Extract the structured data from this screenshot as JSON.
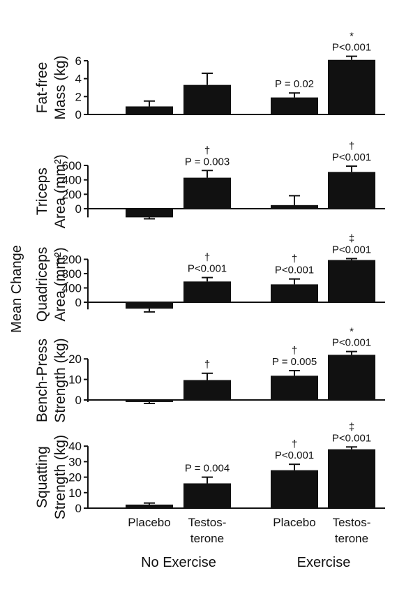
{
  "chart_data": {
    "type": "bar",
    "shared_ylabel": "Mean Change",
    "categories": [
      "Placebo",
      "Testos-\nterone",
      "Placebo",
      "Testos-\nterone"
    ],
    "category_lines": [
      [
        "Placebo"
      ],
      [
        "Testos-",
        "terone"
      ],
      [
        "Placebo"
      ],
      [
        "Testos-",
        "terone"
      ]
    ],
    "groups": [
      {
        "label": "No Exercise",
        "categories": [
          0,
          1
        ]
      },
      {
        "label": "Exercise",
        "categories": [
          2,
          3
        ]
      }
    ],
    "panels": [
      {
        "ylabel": [
          "Fat-free",
          "Mass (kg)"
        ],
        "ylim": [
          0,
          6
        ],
        "yticks": [
          0,
          2,
          4,
          6
        ],
        "values": [
          0.9,
          3.3,
          1.9,
          6.1
        ],
        "errors": [
          0.6,
          1.3,
          0.5,
          0.4
        ],
        "symbols": [
          "",
          "",
          "",
          "*"
        ],
        "annotations": [
          "",
          "",
          "P = 0.02",
          "P<0.001"
        ]
      },
      {
        "ylabel": [
          "Triceps",
          "Area (mm²)"
        ],
        "ylim": [
          -120,
          600
        ],
        "yticks": [
          0,
          200,
          400,
          600
        ],
        "values": [
          -120,
          430,
          50,
          510
        ],
        "errors": [
          20,
          100,
          130,
          80
        ],
        "symbols": [
          "",
          "†",
          "",
          "†"
        ],
        "annotations": [
          "",
          "P = 0.003",
          "",
          "P<0.001"
        ]
      },
      {
        "ylabel": [
          "Quadriceps",
          "Area (mm²)"
        ],
        "ylim": [
          -200,
          1200
        ],
        "yticks": [
          0,
          400,
          800,
          1200
        ],
        "values": [
          -180,
          580,
          500,
          1180
        ],
        "errors": [
          90,
          110,
          150,
          40
        ],
        "symbols": [
          "",
          "†",
          "†",
          "‡"
        ],
        "annotations": [
          "",
          "P<0.001",
          "P<0.001",
          "P<0.001"
        ]
      },
      {
        "ylabel": [
          "Bench-Press",
          "Strength (kg)"
        ],
        "ylim": [
          -1,
          20
        ],
        "yticks": [
          0,
          10,
          20
        ],
        "values": [
          -1,
          9.7,
          11.8,
          22
        ],
        "errors": [
          0.7,
          3.3,
          2.5,
          1.6
        ],
        "symbols": [
          "",
          "†",
          "†",
          "*"
        ],
        "annotations": [
          "",
          "",
          "P = 0.005",
          "P<0.001"
        ]
      },
      {
        "ylabel": [
          "Squatting",
          "Strength (kg)"
        ],
        "ylim": [
          0,
          40
        ],
        "yticks": [
          0,
          10,
          20,
          30,
          40
        ],
        "values": [
          2.3,
          16,
          24.5,
          38
        ],
        "errors": [
          1,
          4,
          3.8,
          1.5
        ],
        "symbols": [
          "",
          "",
          "†",
          "‡"
        ],
        "annotations": [
          "",
          "P = 0.004",
          "P<0.001",
          "P<0.001"
        ]
      }
    ]
  }
}
